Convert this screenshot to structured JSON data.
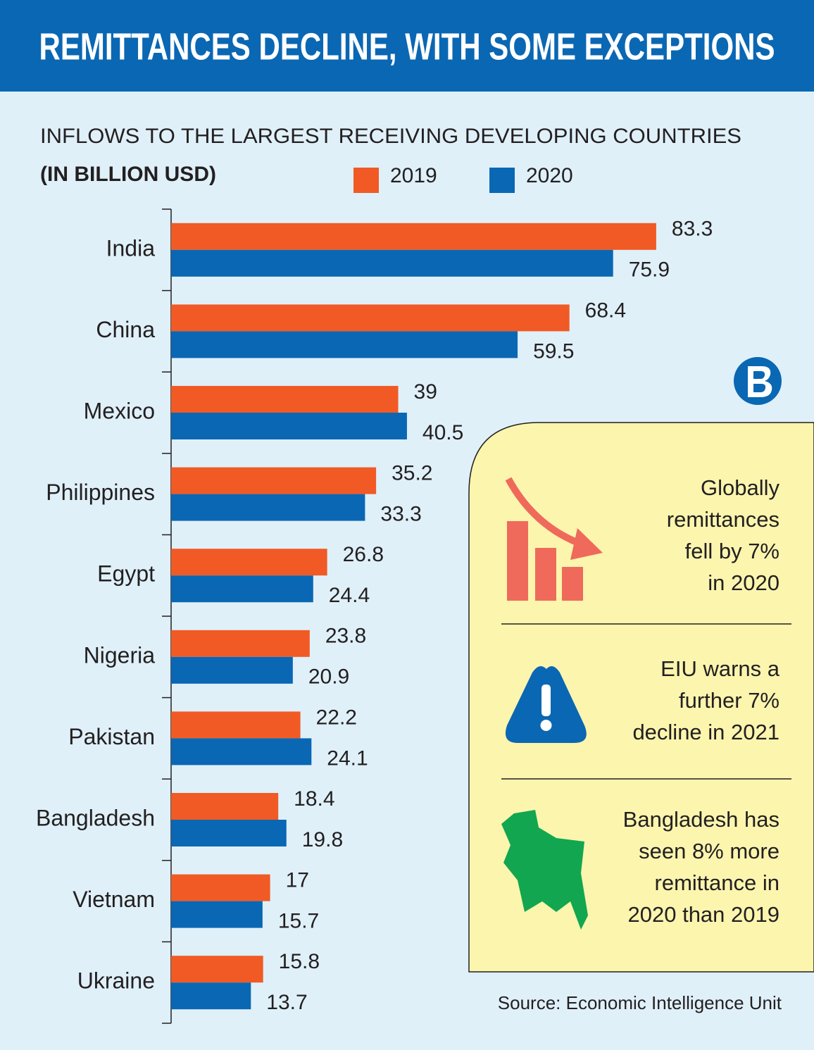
{
  "chart_data": {
    "type": "bar",
    "orientation": "horizontal",
    "title": "REMITTANCES DECLINE, WITH SOME EXCEPTIONS",
    "subtitle": "INFLOWS TO THE LARGEST RECEIVING DEVELOPING COUNTRIES",
    "unit_label": "(IN BILLION USD)",
    "categories": [
      "India",
      "China",
      "Mexico",
      "Philippines",
      "Egypt",
      "Nigeria",
      "Pakistan",
      "Bangladesh",
      "Vietnam",
      "Ukraine"
    ],
    "series": [
      {
        "name": "2019",
        "color": "#f15a24",
        "values": [
          83.3,
          68.4,
          39,
          35.2,
          26.8,
          23.8,
          22.2,
          18.4,
          17,
          15.8
        ]
      },
      {
        "name": "2020",
        "color": "#0a67b3",
        "values": [
          75.9,
          59.5,
          40.5,
          33.3,
          24.4,
          20.9,
          24.1,
          19.8,
          15.7,
          13.7
        ]
      }
    ],
    "notes": [
      {
        "lines": [
          "Globally",
          "remittances",
          "fell by 7%",
          "in 2020"
        ]
      },
      {
        "lines": [
          "EIU warns a",
          "further 7%",
          "decline in 2021"
        ]
      },
      {
        "lines": [
          "Bangladesh has",
          "seen 8% more",
          "remittance in",
          "2020 than 2019"
        ]
      }
    ],
    "source": "Source: Economic Intelligence Unit"
  }
}
